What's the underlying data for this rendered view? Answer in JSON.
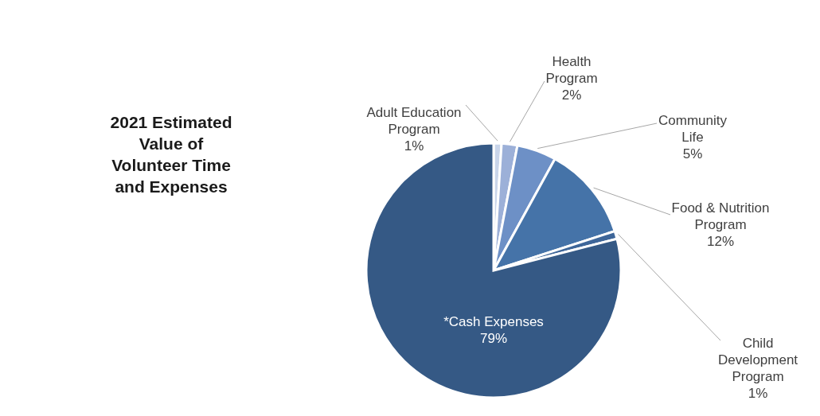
{
  "chart_data": {
    "type": "pie",
    "title": "2021 Estimated Value of Volunteer Time and Expenses",
    "categories": [
      "Adult Education Program",
      "Health Program",
      "Community Life",
      "Food & Nutrition Program",
      "Child Development Program",
      "*Cash Expenses"
    ],
    "values": [
      1,
      2,
      5,
      12,
      1,
      79
    ],
    "colors": [
      "#c9d5ea",
      "#9cb0d8",
      "#6d90c6",
      "#4573a8",
      "#3e6699",
      "#355985"
    ],
    "value_labels": [
      "1%",
      "2%",
      "5%",
      "12%",
      "1%",
      "79%"
    ]
  }
}
